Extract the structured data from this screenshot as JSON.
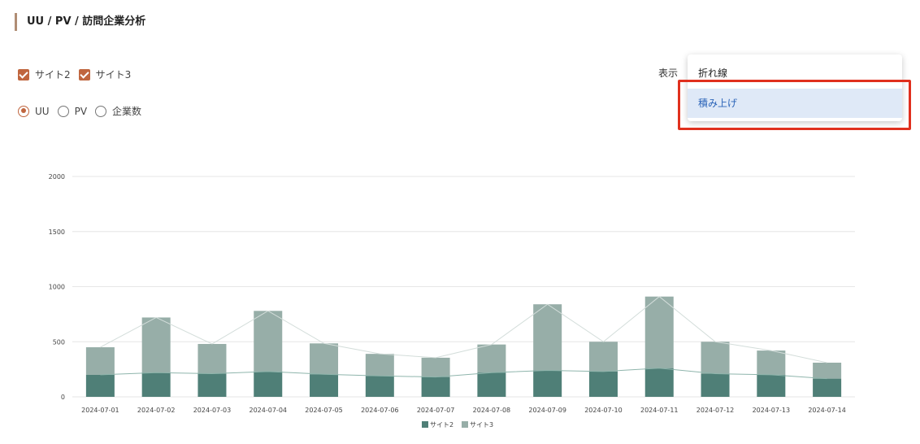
{
  "section": {
    "title": "UU / PV / 訪問企業分析"
  },
  "filters": {
    "sites": [
      {
        "label": "サイト2",
        "checked": true
      },
      {
        "label": "サイト3",
        "checked": true
      }
    ],
    "metrics": [
      {
        "label": "UU",
        "checked": true
      },
      {
        "label": "PV",
        "checked": false
      },
      {
        "label": "企業数",
        "checked": false
      }
    ]
  },
  "display": {
    "label": "表示",
    "options": [
      "折れ線",
      "積み上げ"
    ],
    "highlighted": "積み上げ"
  },
  "colors": {
    "accent": "#c0663f",
    "site2": "#4f7f77",
    "site3": "#97aea8",
    "highlight": "#e0301e",
    "title_bar": "#b08d74"
  },
  "chart_data": {
    "type": "bar",
    "stacked": true,
    "categories": [
      "2024-07-01",
      "2024-07-02",
      "2024-07-03",
      "2024-07-04",
      "2024-07-05",
      "2024-07-06",
      "2024-07-07",
      "2024-07-08",
      "2024-07-09",
      "2024-07-10",
      "2024-07-11",
      "2024-07-12",
      "2024-07-13",
      "2024-07-14"
    ],
    "series": [
      {
        "name": "サイト2",
        "color": "#4f7f77",
        "values": [
          200,
          220,
          210,
          230,
          205,
          190,
          180,
          220,
          240,
          230,
          260,
          210,
          200,
          165
        ]
      },
      {
        "name": "サイト3",
        "color": "#97aea8",
        "values": [
          250,
          500,
          270,
          550,
          280,
          200,
          175,
          255,
          600,
          270,
          650,
          290,
          220,
          145
        ]
      }
    ],
    "ylim": [
      0,
      2000
    ],
    "yticks": [
      0,
      500,
      1000,
      1500,
      2000
    ],
    "grid": true,
    "legend": "bottom"
  }
}
